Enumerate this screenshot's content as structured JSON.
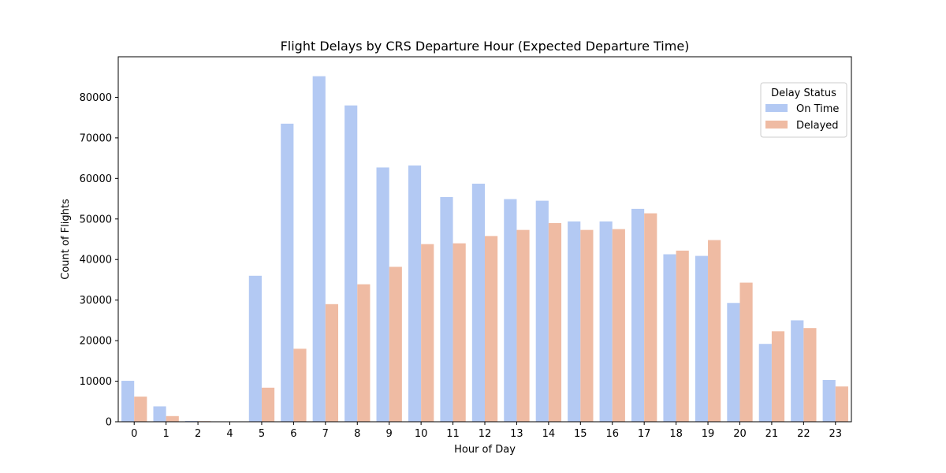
{
  "chart_data": {
    "type": "bar",
    "title": "Flight Delays by CRS Departure Hour (Expected Departure Time)",
    "xlabel": "Hour of Day",
    "ylabel": "Count of Flights",
    "categories": [
      "0",
      "1",
      "2",
      "4",
      "5",
      "6",
      "7",
      "8",
      "9",
      "10",
      "11",
      "12",
      "13",
      "14",
      "15",
      "16",
      "17",
      "18",
      "19",
      "20",
      "21",
      "22",
      "23"
    ],
    "ylim": [
      0,
      90000
    ],
    "yticks": [
      0,
      10000,
      20000,
      30000,
      40000,
      50000,
      60000,
      70000,
      80000
    ],
    "grid": false,
    "legend": {
      "title": "Delay Status",
      "placement": "top-right"
    },
    "series": [
      {
        "name": "On Time",
        "color": "#b3c9f3",
        "values": [
          10100,
          3800,
          200,
          80,
          36000,
          73500,
          85200,
          78000,
          62700,
          63200,
          55400,
          58700,
          54900,
          54500,
          49400,
          49400,
          52500,
          41300,
          40900,
          29300,
          19200,
          25000,
          10300
        ]
      },
      {
        "name": "Delayed",
        "color": "#efbba3",
        "values": [
          6200,
          1400,
          150,
          50,
          8400,
          18000,
          29000,
          33900,
          38200,
          43800,
          44000,
          45800,
          47300,
          49000,
          47300,
          47500,
          51400,
          42200,
          44800,
          34300,
          22300,
          23100,
          8700
        ]
      }
    ]
  }
}
